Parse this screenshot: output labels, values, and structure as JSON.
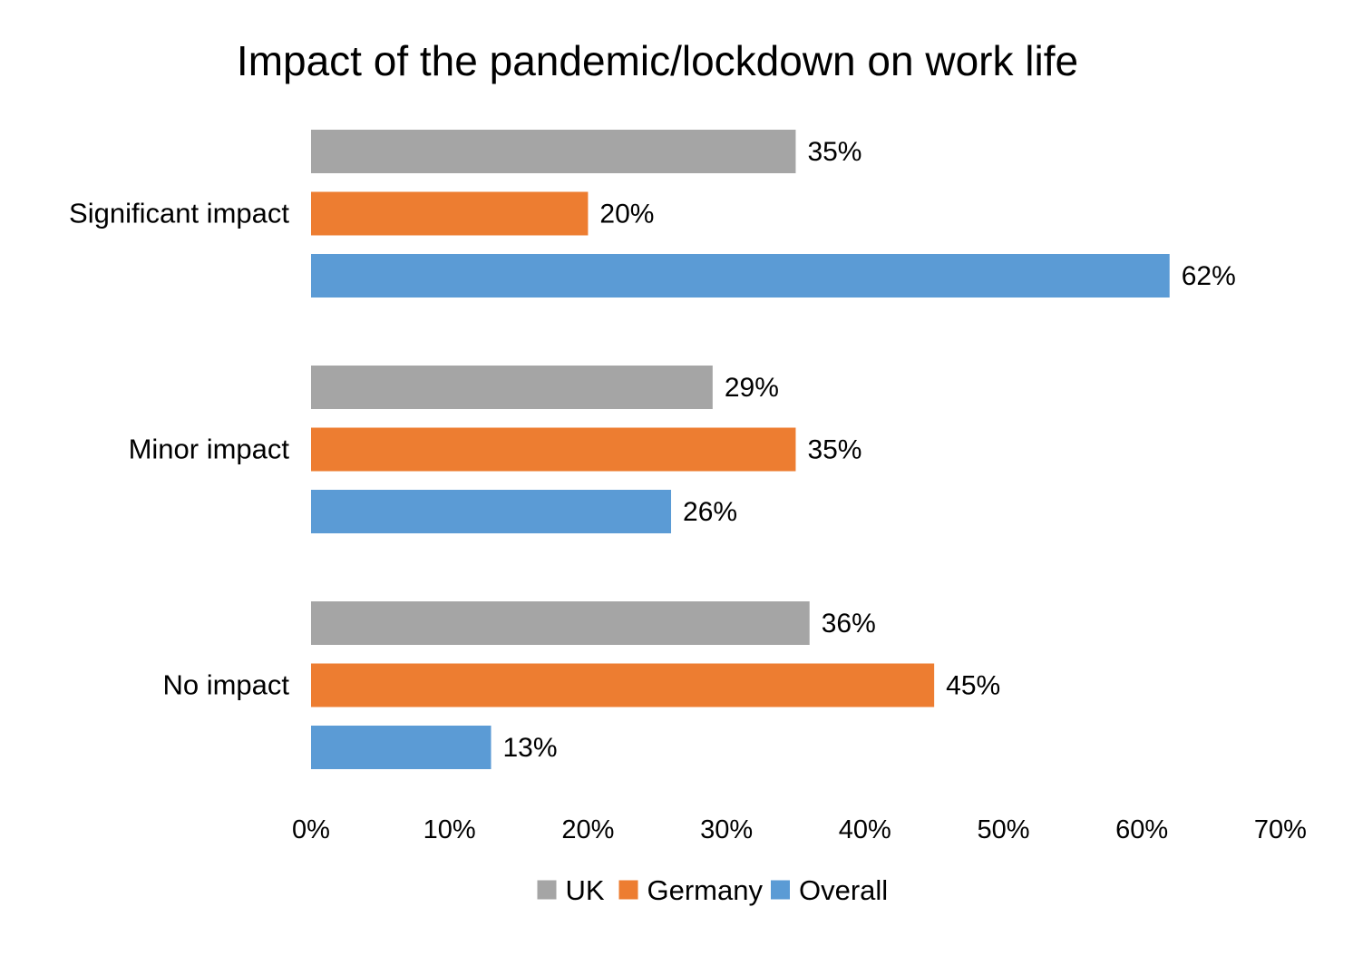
{
  "chart_data": {
    "type": "bar",
    "orientation": "horizontal",
    "title": "Impact of the pandemic/lockdown on work life",
    "xlabel": "",
    "ylabel": "",
    "categories": [
      "Significant impact",
      "Minor impact",
      "No impact"
    ],
    "series": [
      {
        "name": "UK",
        "color": "#a5a5a5",
        "values": [
          35,
          29,
          36
        ],
        "labels": [
          "35%",
          "29%",
          "36%"
        ]
      },
      {
        "name": "Germany",
        "color": "#ed7d31",
        "values": [
          20,
          35,
          45
        ],
        "labels": [
          "20%",
          "35%",
          "45%"
        ]
      },
      {
        "name": "Overall",
        "color": "#5b9bd5",
        "values": [
          62,
          26,
          13
        ],
        "labels": [
          "62%",
          "26%",
          "13%"
        ]
      }
    ],
    "xlim": [
      0,
      70
    ],
    "xticks": [
      0,
      10,
      20,
      30,
      40,
      50,
      60,
      70
    ],
    "xtick_labels": [
      "0%",
      "10%",
      "20%",
      "30%",
      "40%",
      "50%",
      "60%",
      "70%"
    ],
    "grid": false,
    "legend_position": "bottom"
  }
}
